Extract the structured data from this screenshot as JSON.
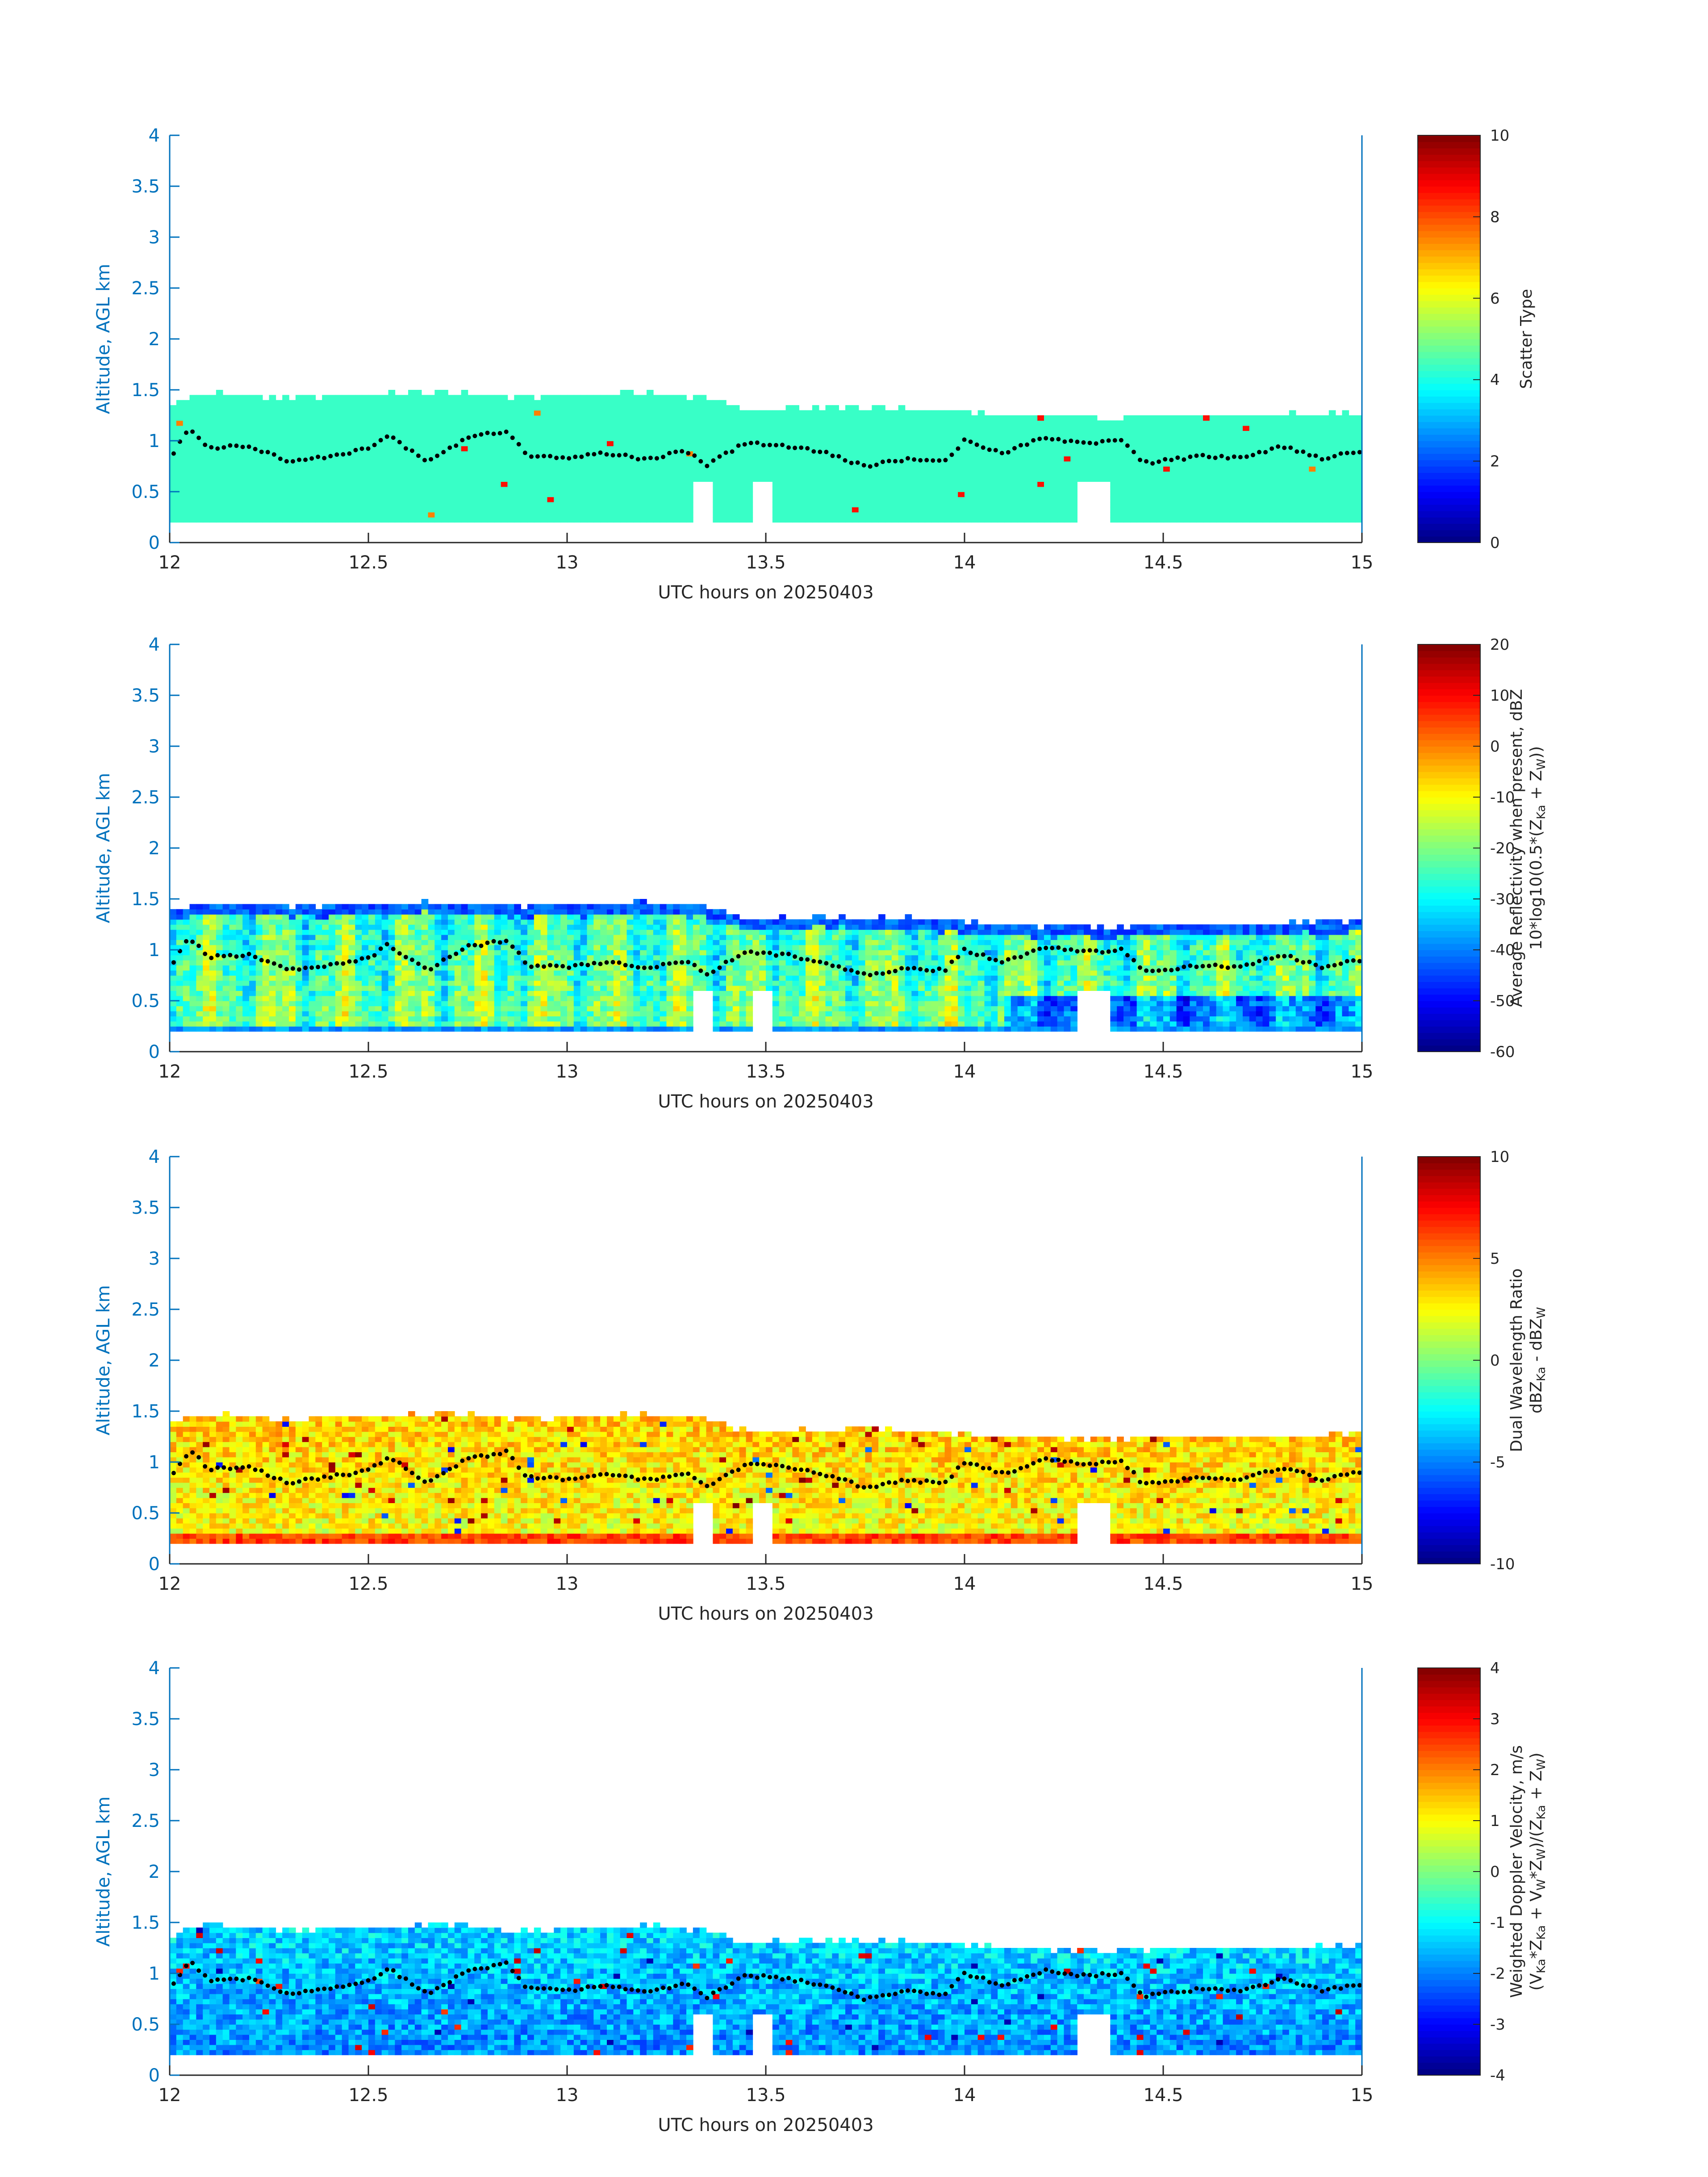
{
  "colors": {
    "axis": "#0072bd",
    "text": "#262626",
    "marker": "#000000",
    "colormap": "jet"
  },
  "chart_data": [
    {
      "type": "heatmap",
      "xlabel": "UTC hours on 20250403",
      "ylabel": "Altitude, AGL km",
      "xlim": [
        12,
        15
      ],
      "ylim": [
        0,
        4
      ],
      "xticks": [
        "12",
        "12.5",
        "13",
        "13.5",
        "14",
        "14.5",
        "15"
      ],
      "yticks": [
        "0",
        "0.5",
        "1",
        "1.5",
        "2",
        "2.5",
        "3",
        "3.5",
        "4"
      ],
      "colorbar": {
        "label_lines": [
          [
            "Scatter Type"
          ]
        ],
        "range": [
          0,
          10
        ],
        "ticks": [
          "0",
          "2",
          "4",
          "6",
          "8",
          "10"
        ]
      },
      "field": "scatter_type",
      "dominant_value": 4.3,
      "occasional_values": [
        7.5,
        8.6
      ]
    },
    {
      "type": "heatmap",
      "xlabel": "UTC hours on 20250403",
      "ylabel": "Altitude, AGL km",
      "xlim": [
        12,
        15
      ],
      "ylim": [
        0,
        4
      ],
      "xticks": [
        "12",
        "12.5",
        "13",
        "13.5",
        "14",
        "14.5",
        "15"
      ],
      "yticks": [
        "0",
        "0.5",
        "1",
        "1.5",
        "2",
        "2.5",
        "3",
        "3.5",
        "4"
      ],
      "colorbar": {
        "label_lines": [
          [
            "Average Reflectivity when present, dBZ"
          ],
          [
            "10*log10(0.5*(Z",
            "Ka",
            " + Z",
            "W",
            "))"
          ]
        ],
        "range": [
          -60,
          20
        ],
        "ticks": [
          "-60",
          "-50",
          "-40",
          "-30",
          "-20",
          "-10",
          "0",
          "10",
          "20"
        ]
      },
      "field": "reflectivity",
      "typical_range": [
        -35,
        -5
      ]
    },
    {
      "type": "heatmap",
      "xlabel": "UTC hours on 20250403",
      "ylabel": "Altitude, AGL km",
      "xlim": [
        12,
        15
      ],
      "ylim": [
        0,
        4
      ],
      "xticks": [
        "12",
        "12.5",
        "13",
        "13.5",
        "14",
        "14.5",
        "15"
      ],
      "yticks": [
        "0",
        "0.5",
        "1",
        "1.5",
        "2",
        "2.5",
        "3",
        "3.5",
        "4"
      ],
      "colorbar": {
        "label_lines": [
          [
            "Dual Wavelength Ratio"
          ],
          [
            "dBZ",
            "Ka",
            " - dBZ",
            "W",
            ""
          ]
        ],
        "range": [
          -10,
          10
        ],
        "ticks": [
          "-10",
          "-5",
          "0",
          "5",
          "10"
        ]
      },
      "field": "dual_wavelength_ratio",
      "typical_range": [
        0,
        4
      ]
    },
    {
      "type": "heatmap",
      "xlabel": "UTC hours on 20250403",
      "ylabel": "Altitude, AGL km",
      "xlim": [
        12,
        15
      ],
      "ylim": [
        0,
        4
      ],
      "xticks": [
        "12",
        "12.5",
        "13",
        "13.5",
        "14",
        "14.5",
        "15"
      ],
      "yticks": [
        "0",
        "0.5",
        "1",
        "1.5",
        "2",
        "2.5",
        "3",
        "3.5",
        "4"
      ],
      "colorbar": {
        "label_lines": [
          [
            "Weighted Doppler Velocity, m/s"
          ],
          [
            "(V",
            "Ka",
            "*Z",
            "Ka",
            " + V",
            "W",
            "*Z",
            "W",
            ")/(Z",
            "Ka",
            " + Z",
            "W",
            ")"
          ]
        ],
        "range": [
          -4,
          4
        ],
        "ticks": [
          "-4",
          "-3",
          "-2",
          "-1",
          "0",
          "1",
          "2",
          "3",
          "4"
        ]
      },
      "field": "doppler_velocity",
      "typical_range": [
        -2.2,
        -0.5
      ]
    }
  ],
  "cloud": {
    "top_km": [
      [
        12.0,
        1.35
      ],
      [
        12.1,
        1.45
      ],
      [
        12.3,
        1.4
      ],
      [
        12.7,
        1.45
      ],
      [
        12.9,
        1.4
      ],
      [
        13.2,
        1.45
      ],
      [
        13.35,
        1.4
      ],
      [
        13.45,
        1.28
      ],
      [
        13.8,
        1.3
      ],
      [
        14.0,
        1.25
      ],
      [
        14.15,
        1.22
      ],
      [
        14.3,
        1.2
      ],
      [
        14.5,
        1.22
      ],
      [
        15.0,
        1.25
      ]
    ],
    "base_km": 0.2,
    "gaps": [
      [
        13.32,
        13.36
      ],
      [
        13.46,
        13.52
      ],
      [
        14.28,
        14.36
      ]
    ]
  },
  "marker_line_km": [
    [
      12.0,
      0.83
    ],
    [
      12.05,
      1.12
    ],
    [
      12.1,
      0.93
    ],
    [
      12.2,
      0.95
    ],
    [
      12.3,
      0.8
    ],
    [
      12.4,
      0.85
    ],
    [
      12.5,
      0.92
    ],
    [
      12.55,
      1.05
    ],
    [
      12.65,
      0.8
    ],
    [
      12.75,
      1.03
    ],
    [
      12.85,
      1.1
    ],
    [
      12.9,
      0.85
    ],
    [
      13.0,
      0.83
    ],
    [
      13.1,
      0.88
    ],
    [
      13.2,
      0.82
    ],
    [
      13.3,
      0.9
    ],
    [
      13.35,
      0.76
    ],
    [
      13.45,
      0.98
    ],
    [
      13.55,
      0.95
    ],
    [
      13.65,
      0.88
    ],
    [
      13.75,
      0.75
    ],
    [
      13.85,
      0.82
    ],
    [
      13.95,
      0.8
    ],
    [
      14.0,
      1.0
    ],
    [
      14.1,
      0.88
    ],
    [
      14.2,
      1.03
    ],
    [
      14.3,
      0.98
    ],
    [
      14.4,
      1.0
    ],
    [
      14.45,
      0.78
    ],
    [
      14.6,
      0.85
    ],
    [
      14.7,
      0.83
    ],
    [
      14.8,
      0.95
    ],
    [
      14.9,
      0.83
    ],
    [
      15.0,
      0.9
    ]
  ]
}
